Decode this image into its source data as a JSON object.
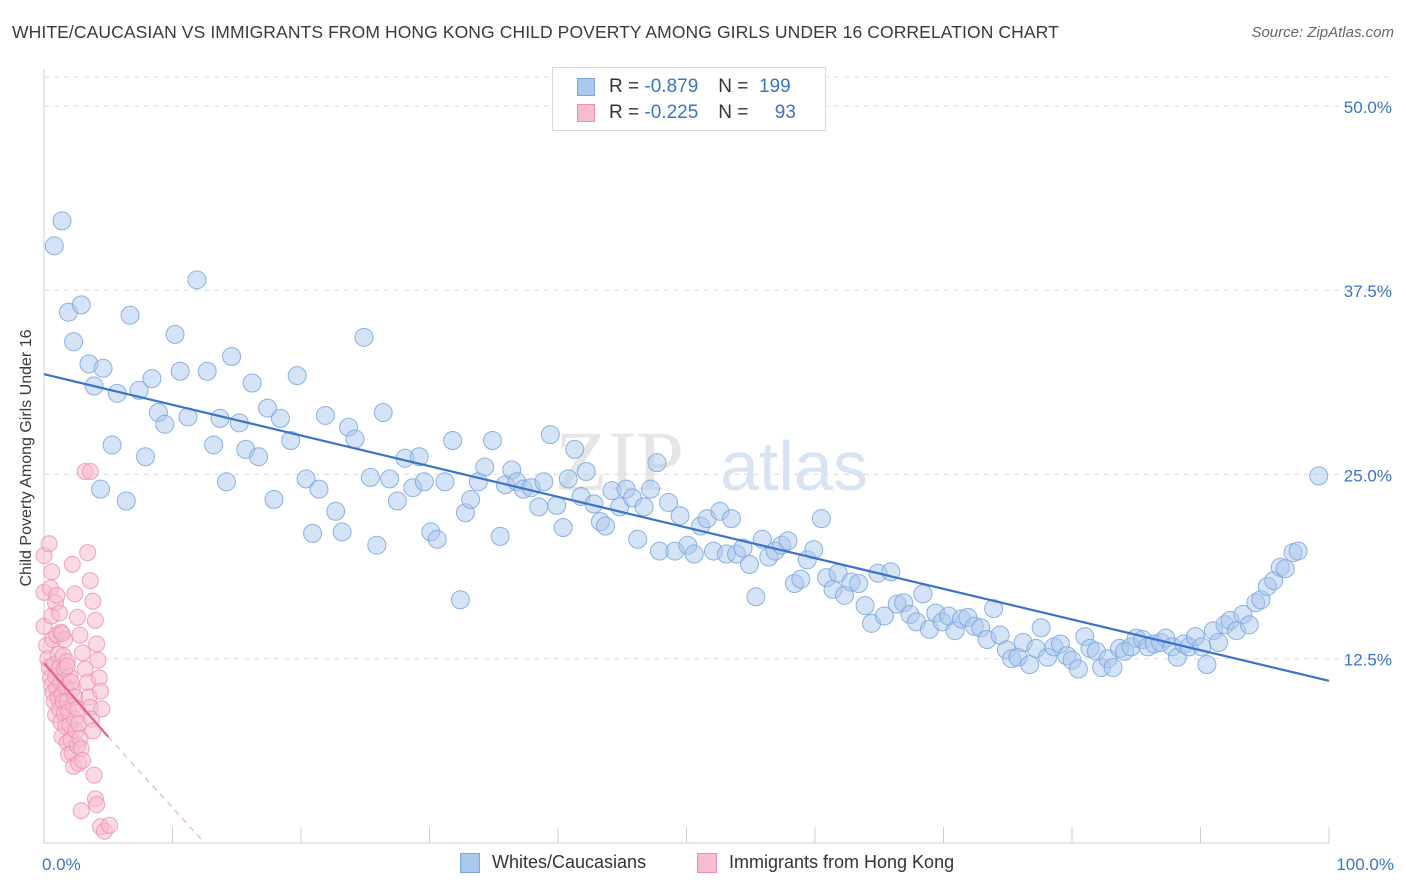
{
  "header": {
    "title": "WHITE/CAUCASIAN VS IMMIGRANTS FROM HONG KONG CHILD POVERTY AMONG GIRLS UNDER 16 CORRELATION CHART",
    "source": "Source: ZipAtlas.com"
  },
  "watermark": {
    "zip": "ZIP",
    "atlas": "atlas"
  },
  "legend_top": {
    "rows": [
      {
        "r_label": "R =",
        "r_value": "-0.879",
        "n_label": "N =",
        "n_value": "199"
      },
      {
        "r_label": "R =",
        "r_value": "-0.225",
        "n_label": "N =",
        "n_value": "93"
      }
    ]
  },
  "legend_bottom": {
    "items": [
      {
        "label": "Whites/Caucasians"
      },
      {
        "label": "Immigrants from Hong Kong"
      }
    ]
  },
  "colors": {
    "blue_fill": "#a9c8ee",
    "blue_stroke": "#7aa6dc",
    "blue_line": "#3a74c9",
    "pink_fill": "#f6bcd0",
    "pink_stroke": "#ee8eb1",
    "pink_line": "#e8608e",
    "axis_value": "#3a74c9",
    "grid": "#dcdcdc"
  },
  "chart_data": {
    "type": "scatter",
    "title": "WHITE/CAUCASIAN VS IMMIGRANTS FROM HONG KONG CHILD POVERTY AMONG GIRLS UNDER 16 CORRELATION CHART",
    "xlabel": "",
    "ylabel": "Child Poverty Among Girls Under 16",
    "xlim": [
      0,
      100
    ],
    "ylim": [
      0,
      52.5
    ],
    "x_tick_labels": [
      "0.0%",
      "100.0%"
    ],
    "y_ticks": [
      12.5,
      25.0,
      37.5,
      50.0
    ],
    "y_tick_labels": [
      "12.5%",
      "25.0%",
      "37.5%",
      "50.0%"
    ],
    "grid": "horizontal dashed",
    "legend_position": "top-center",
    "series": [
      {
        "name": "Whites/Caucasians",
        "r": -0.879,
        "n": 199,
        "trend": {
          "x": [
            0,
            100
          ],
          "y": [
            31.8,
            11.0
          ]
        },
        "points": [
          [
            0.8,
            40.5
          ],
          [
            1.4,
            42.2
          ],
          [
            1.9,
            36.0
          ],
          [
            2.3,
            34.0
          ],
          [
            2.9,
            36.5
          ],
          [
            3.5,
            32.5
          ],
          [
            3.9,
            31.0
          ],
          [
            4.6,
            32.2
          ],
          [
            5.3,
            27.0
          ],
          [
            5.7,
            30.5
          ],
          [
            4.4,
            24.0
          ],
          [
            6.4,
            23.2
          ],
          [
            6.7,
            35.8
          ],
          [
            7.4,
            30.7
          ],
          [
            7.9,
            26.2
          ],
          [
            8.4,
            31.5
          ],
          [
            8.9,
            29.2
          ],
          [
            9.4,
            28.4
          ],
          [
            10.2,
            34.5
          ],
          [
            10.6,
            32.0
          ],
          [
            11.2,
            28.9
          ],
          [
            11.9,
            38.2
          ],
          [
            12.7,
            32.0
          ],
          [
            13.2,
            27.0
          ],
          [
            13.7,
            28.8
          ],
          [
            14.2,
            24.5
          ],
          [
            14.6,
            33.0
          ],
          [
            15.2,
            28.5
          ],
          [
            15.7,
            26.7
          ],
          [
            16.2,
            31.2
          ],
          [
            16.7,
            26.2
          ],
          [
            17.4,
            29.5
          ],
          [
            17.9,
            23.3
          ],
          [
            18.4,
            28.8
          ],
          [
            19.2,
            27.3
          ],
          [
            19.7,
            31.7
          ],
          [
            20.4,
            24.7
          ],
          [
            20.9,
            21.0
          ],
          [
            21.4,
            24.0
          ],
          [
            21.9,
            29.0
          ],
          [
            22.7,
            22.5
          ],
          [
            23.2,
            21.1
          ],
          [
            23.7,
            28.2
          ],
          [
            24.2,
            27.4
          ],
          [
            24.9,
            34.3
          ],
          [
            25.4,
            24.8
          ],
          [
            25.9,
            20.2
          ],
          [
            26.4,
            29.2
          ],
          [
            26.9,
            24.7
          ],
          [
            27.5,
            23.2
          ],
          [
            28.1,
            26.1
          ],
          [
            28.7,
            24.1
          ],
          [
            29.2,
            26.2
          ],
          [
            29.6,
            24.5
          ],
          [
            30.1,
            21.1
          ],
          [
            30.6,
            20.6
          ],
          [
            31.2,
            24.5
          ],
          [
            31.8,
            27.3
          ],
          [
            32.4,
            16.5
          ],
          [
            32.8,
            22.4
          ],
          [
            33.2,
            23.3
          ],
          [
            33.8,
            24.5
          ],
          [
            34.3,
            25.5
          ],
          [
            34.9,
            27.3
          ],
          [
            35.5,
            20.8
          ],
          [
            35.9,
            24.3
          ],
          [
            36.4,
            25.3
          ],
          [
            36.8,
            24.5
          ],
          [
            37.3,
            24.0
          ],
          [
            37.9,
            24.1
          ],
          [
            38.5,
            22.8
          ],
          [
            38.9,
            24.5
          ],
          [
            39.4,
            27.7
          ],
          [
            39.9,
            22.9
          ],
          [
            40.4,
            21.4
          ],
          [
            40.8,
            24.7
          ],
          [
            41.3,
            26.7
          ],
          [
            41.8,
            23.5
          ],
          [
            42.2,
            25.2
          ],
          [
            42.8,
            23.0
          ],
          [
            43.3,
            21.8
          ],
          [
            43.7,
            21.5
          ],
          [
            44.2,
            23.9
          ],
          [
            44.8,
            22.8
          ],
          [
            45.3,
            24.0
          ],
          [
            45.8,
            23.4
          ],
          [
            46.2,
            20.6
          ],
          [
            46.7,
            22.8
          ],
          [
            47.2,
            24.0
          ],
          [
            47.7,
            25.8
          ],
          [
            47.9,
            19.8
          ],
          [
            48.6,
            23.1
          ],
          [
            49.1,
            19.8
          ],
          [
            49.5,
            22.2
          ],
          [
            50.1,
            20.2
          ],
          [
            50.6,
            19.6
          ],
          [
            51.1,
            21.5
          ],
          [
            51.6,
            22.0
          ],
          [
            52.1,
            19.8
          ],
          [
            52.6,
            22.5
          ],
          [
            53.1,
            19.6
          ],
          [
            53.5,
            22.0
          ],
          [
            53.9,
            19.6
          ],
          [
            54.4,
            20.0
          ],
          [
            54.9,
            18.9
          ],
          [
            55.4,
            16.7
          ],
          [
            55.9,
            20.6
          ],
          [
            56.4,
            19.4
          ],
          [
            56.9,
            19.8
          ],
          [
            57.4,
            20.2
          ],
          [
            57.9,
            20.5
          ],
          [
            58.4,
            17.6
          ],
          [
            58.9,
            17.9
          ],
          [
            59.4,
            19.2
          ],
          [
            59.9,
            19.9
          ],
          [
            60.5,
            22.0
          ],
          [
            60.9,
            18.0
          ],
          [
            61.4,
            17.2
          ],
          [
            61.8,
            18.3
          ],
          [
            62.3,
            16.8
          ],
          [
            62.8,
            17.7
          ],
          [
            63.4,
            17.6
          ],
          [
            63.9,
            16.1
          ],
          [
            64.4,
            14.9
          ],
          [
            64.9,
            18.3
          ],
          [
            65.4,
            15.4
          ],
          [
            65.9,
            18.4
          ],
          [
            66.4,
            16.2
          ],
          [
            66.9,
            16.3
          ],
          [
            67.4,
            15.5
          ],
          [
            67.9,
            15.0
          ],
          [
            68.4,
            16.9
          ],
          [
            68.9,
            14.5
          ],
          [
            69.4,
            15.6
          ],
          [
            69.9,
            15.0
          ],
          [
            70.4,
            15.4
          ],
          [
            70.9,
            14.4
          ],
          [
            71.4,
            15.2
          ],
          [
            71.9,
            15.3
          ],
          [
            72.4,
            14.7
          ],
          [
            72.9,
            14.6
          ],
          [
            73.4,
            13.8
          ],
          [
            73.9,
            15.9
          ],
          [
            74.4,
            14.1
          ],
          [
            74.9,
            13.1
          ],
          [
            75.3,
            12.5
          ],
          [
            75.8,
            12.6
          ],
          [
            76.2,
            13.6
          ],
          [
            76.7,
            12.1
          ],
          [
            77.2,
            13.2
          ],
          [
            77.6,
            14.6
          ],
          [
            78.1,
            12.6
          ],
          [
            78.6,
            13.3
          ],
          [
            79.1,
            13.5
          ],
          [
            79.6,
            12.7
          ],
          [
            80.0,
            12.4
          ],
          [
            80.5,
            11.8
          ],
          [
            81.0,
            14.0
          ],
          [
            81.4,
            13.2
          ],
          [
            81.9,
            13.0
          ],
          [
            82.3,
            11.9
          ],
          [
            82.8,
            12.5
          ],
          [
            83.2,
            11.9
          ],
          [
            83.7,
            13.2
          ],
          [
            84.1,
            13.0
          ],
          [
            84.6,
            13.3
          ],
          [
            85.0,
            13.9
          ],
          [
            85.5,
            13.8
          ],
          [
            85.9,
            13.3
          ],
          [
            86.4,
            13.5
          ],
          [
            86.9,
            13.6
          ],
          [
            87.3,
            13.9
          ],
          [
            87.8,
            13.3
          ],
          [
            88.2,
            12.6
          ],
          [
            88.7,
            13.5
          ],
          [
            89.1,
            13.3
          ],
          [
            89.6,
            14.0
          ],
          [
            90.1,
            13.3
          ],
          [
            90.5,
            12.1
          ],
          [
            91.0,
            14.4
          ],
          [
            91.4,
            13.6
          ],
          [
            91.9,
            14.8
          ],
          [
            92.3,
            15.1
          ],
          [
            92.8,
            14.4
          ],
          [
            93.3,
            15.5
          ],
          [
            93.8,
            14.8
          ],
          [
            94.3,
            16.3
          ],
          [
            94.7,
            16.5
          ],
          [
            95.2,
            17.4
          ],
          [
            95.7,
            17.8
          ],
          [
            96.2,
            18.7
          ],
          [
            96.6,
            18.6
          ],
          [
            97.2,
            19.7
          ],
          [
            97.6,
            19.8
          ],
          [
            99.2,
            24.9
          ]
        ]
      },
      {
        "name": "Immigrants from Hong Kong",
        "r": -0.225,
        "n": 93,
        "trend": {
          "x": [
            0,
            5
          ],
          "y": [
            12.2,
            7.2
          ]
        },
        "trend_extension": {
          "x": [
            5,
            12.5
          ],
          "y": [
            7.2,
            0
          ]
        },
        "points": [
          [
            0.0,
            19.5
          ],
          [
            0.0,
            17.0
          ],
          [
            0.0,
            14.7
          ],
          [
            0.2,
            13.4
          ],
          [
            0.3,
            12.5
          ],
          [
            0.4,
            11.9
          ],
          [
            0.5,
            11.2
          ],
          [
            0.6,
            10.7
          ],
          [
            0.7,
            10.2
          ],
          [
            0.8,
            9.6
          ],
          [
            0.9,
            8.7
          ],
          [
            0.4,
            20.3
          ],
          [
            0.5,
            17.3
          ],
          [
            0.6,
            15.4
          ],
          [
            0.7,
            13.8
          ],
          [
            0.8,
            12.1
          ],
          [
            0.9,
            11.3
          ],
          [
            1.0,
            10.5
          ],
          [
            1.1,
            9.8
          ],
          [
            1.2,
            9.1
          ],
          [
            1.3,
            8.2
          ],
          [
            1.4,
            7.2
          ],
          [
            0.6,
            18.4
          ],
          [
            0.9,
            16.3
          ],
          [
            1.0,
            14.1
          ],
          [
            1.1,
            12.8
          ],
          [
            1.2,
            11.9
          ],
          [
            1.3,
            10.9
          ],
          [
            1.4,
            10.1
          ],
          [
            1.5,
            9.6
          ],
          [
            1.6,
            8.8
          ],
          [
            1.7,
            7.9
          ],
          [
            1.8,
            6.8
          ],
          [
            1.9,
            6.0
          ],
          [
            1.0,
            16.8
          ],
          [
            1.3,
            14.3
          ],
          [
            1.5,
            12.7
          ],
          [
            1.6,
            11.8
          ],
          [
            1.7,
            10.6
          ],
          [
            1.8,
            9.6
          ],
          [
            1.9,
            8.9
          ],
          [
            2.0,
            8.0
          ],
          [
            2.1,
            7.0
          ],
          [
            2.2,
            6.1
          ],
          [
            2.3,
            5.2
          ],
          [
            1.2,
            15.6
          ],
          [
            1.6,
            13.8
          ],
          [
            1.8,
            12.3
          ],
          [
            2.0,
            11.3
          ],
          [
            2.2,
            10.4
          ],
          [
            2.3,
            9.3
          ],
          [
            2.4,
            8.4
          ],
          [
            2.5,
            7.6
          ],
          [
            2.6,
            6.6
          ],
          [
            2.7,
            5.4
          ],
          [
            1.4,
            14.2
          ],
          [
            1.8,
            12.0
          ],
          [
            2.1,
            10.9
          ],
          [
            2.4,
            9.9
          ],
          [
            2.6,
            9.1
          ],
          [
            2.7,
            8.1
          ],
          [
            2.8,
            7.1
          ],
          [
            2.9,
            6.4
          ],
          [
            3.0,
            5.6
          ],
          [
            2.2,
            18.9
          ],
          [
            2.4,
            16.9
          ],
          [
            2.6,
            15.3
          ],
          [
            2.8,
            14.1
          ],
          [
            3.0,
            12.9
          ],
          [
            3.2,
            11.8
          ],
          [
            3.4,
            10.9
          ],
          [
            3.5,
            9.9
          ],
          [
            3.6,
            9.2
          ],
          [
            3.7,
            8.4
          ],
          [
            3.8,
            7.6
          ],
          [
            3.9,
            4.6
          ],
          [
            4.0,
            3.0
          ],
          [
            4.1,
            2.6
          ],
          [
            3.4,
            19.7
          ],
          [
            3.6,
            17.8
          ],
          [
            3.8,
            16.4
          ],
          [
            4.0,
            15.1
          ],
          [
            4.1,
            13.5
          ],
          [
            4.2,
            12.4
          ],
          [
            4.3,
            11.2
          ],
          [
            4.4,
            10.3
          ],
          [
            4.5,
            9.1
          ],
          [
            3.2,
            25.2
          ],
          [
            3.6,
            25.2
          ],
          [
            4.4,
            1.1
          ],
          [
            4.7,
            0.8
          ],
          [
            5.1,
            1.2
          ],
          [
            2.9,
            2.2
          ]
        ]
      }
    ]
  }
}
